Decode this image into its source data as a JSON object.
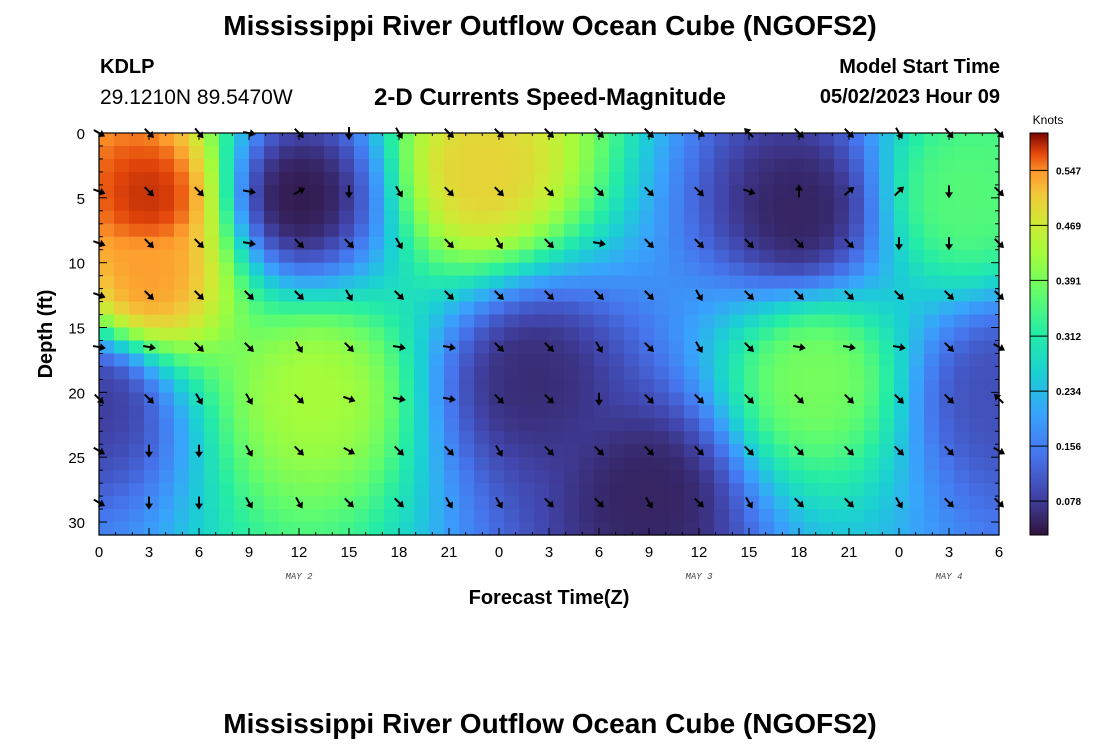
{
  "page": {
    "title": "Mississippi River Outflow Ocean Cube (NGOFS2)",
    "station_id": "KDLP",
    "station_coords": "29.1210N  89.5470W",
    "subtitle": "2-D Currents Speed-Magnitude",
    "model_start_label": "Model Start Time",
    "model_start_value": "05/02/2023 Hour 09",
    "footer_title": "Mississippi River Outflow Ocean Cube (NGOFS2)"
  },
  "chart_data": {
    "type": "heatmap",
    "title": "2-D Currents Speed-Magnitude",
    "xlabel": "Forecast Time(Z)",
    "ylabel": "Depth (ft)",
    "x_tick_labels": [
      "0",
      "3",
      "6",
      "9",
      "12",
      "15",
      "18",
      "21",
      "0",
      "3",
      "6",
      "9",
      "12",
      "15",
      "18",
      "21",
      "0",
      "3",
      "6"
    ],
    "x_range_hours": [
      0,
      54
    ],
    "date_labels": [
      {
        "text": "MAY 2",
        "hour": 12
      },
      {
        "text": "MAY 3",
        "hour": 36
      },
      {
        "text": "MAY 4",
        "hour": 51
      }
    ],
    "y_ticks": [
      0,
      5,
      10,
      15,
      20,
      25,
      30
    ],
    "y_range": [
      0,
      31
    ],
    "y_inverted": true,
    "colorbar": {
      "unit": "Knots",
      "ticks": [
        "0.547",
        "0.469",
        "0.391",
        "0.312",
        "0.234",
        "0.156",
        "0.078"
      ],
      "range": [
        0.03,
        0.6
      ]
    },
    "colors": {
      "low": "#30123b",
      "high": "#7a0403"
    },
    "arrow_depths": [
      0,
      4.5,
      8.5,
      12.5,
      16.5,
      20.5,
      24.5,
      28.5
    ],
    "arrow_hours": [
      0,
      3,
      6,
      9,
      12,
      15,
      18,
      21,
      24,
      27,
      30,
      33,
      36,
      39,
      42,
      45,
      48,
      51,
      54
    ],
    "arrow_directions_deg": [
      [
        30,
        45,
        50,
        10,
        45,
        90,
        60,
        45,
        45,
        45,
        45,
        45,
        30,
        225,
        45,
        45,
        60,
        50,
        45
      ],
      [
        20,
        45,
        45,
        10,
        330,
        90,
        60,
        45,
        45,
        45,
        45,
        45,
        45,
        20,
        270,
        320,
        315,
        90,
        45
      ],
      [
        20,
        45,
        45,
        10,
        45,
        45,
        60,
        45,
        60,
        45,
        10,
        45,
        45,
        45,
        45,
        45,
        90,
        90,
        45
      ],
      [
        20,
        45,
        45,
        45,
        45,
        60,
        45,
        45,
        45,
        45,
        45,
        45,
        60,
        45,
        45,
        45,
        45,
        45,
        45
      ],
      [
        10,
        10,
        45,
        45,
        60,
        45,
        10,
        10,
        45,
        45,
        60,
        45,
        60,
        45,
        10,
        10,
        10,
        45,
        30
      ],
      [
        45,
        45,
        60,
        60,
        45,
        20,
        10,
        10,
        45,
        45,
        90,
        45,
        45,
        45,
        45,
        45,
        45,
        45,
        225
      ],
      [
        30,
        90,
        90,
        60,
        45,
        30,
        45,
        45,
        60,
        45,
        45,
        45,
        45,
        45,
        45,
        45,
        45,
        45,
        30
      ],
      [
        30,
        90,
        90,
        60,
        60,
        45,
        45,
        60,
        60,
        45,
        45,
        60,
        45,
        60,
        45,
        45,
        60,
        45,
        45
      ]
    ],
    "speed_field_hotspots": [
      {
        "hour": 3,
        "depth": 5,
        "speed": 0.58
      },
      {
        "hour": 3,
        "depth": 11,
        "speed": 0.54
      },
      {
        "hour": 12,
        "depth": 5,
        "speed": 0.04
      },
      {
        "hour": 13,
        "depth": 20,
        "speed": 0.43
      },
      {
        "hour": 23,
        "depth": 3,
        "speed": 0.5
      },
      {
        "hour": 26,
        "depth": 19,
        "speed": 0.06
      },
      {
        "hour": 33,
        "depth": 28,
        "speed": 0.05
      },
      {
        "hour": 42,
        "depth": 6,
        "speed": 0.05
      },
      {
        "hour": 43,
        "depth": 19,
        "speed": 0.39
      },
      {
        "hour": 54,
        "depth": 20,
        "speed": 0.1
      },
      {
        "hour": 52,
        "depth": 5,
        "speed": 0.36
      },
      {
        "hour": 0,
        "depth": 21,
        "speed": 0.08
      }
    ]
  }
}
